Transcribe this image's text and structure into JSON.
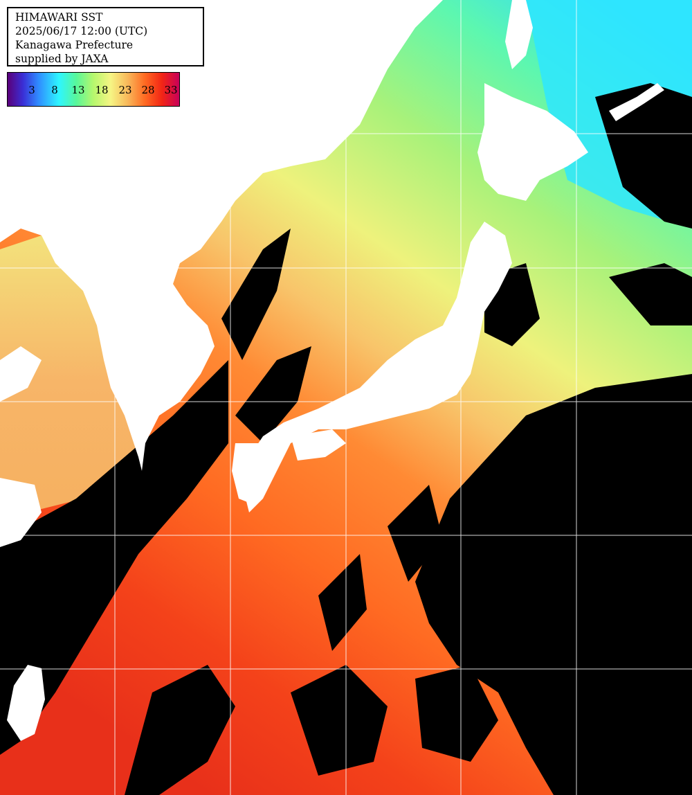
{
  "header": {
    "line1": "HIMAWARI SST",
    "line2": "2025/06/17 12:00 (UTC)",
    "line3": "Kanagawa Prefecture",
    "line4": "supplied by JAXA"
  },
  "legend": {
    "ticks": [
      "3",
      "8",
      "13",
      "18",
      "23",
      "28",
      "33"
    ]
  },
  "colors": {
    "land": "#ffffff",
    "cloud": "#000000",
    "grid": "#ffffff",
    "cold": "#2ee6ff",
    "cool": "#8ff77a",
    "mild": "#f4e77a",
    "warm": "#f7a24a",
    "hot": "#ff6a1e",
    "tropical": "#f0321a"
  }
}
